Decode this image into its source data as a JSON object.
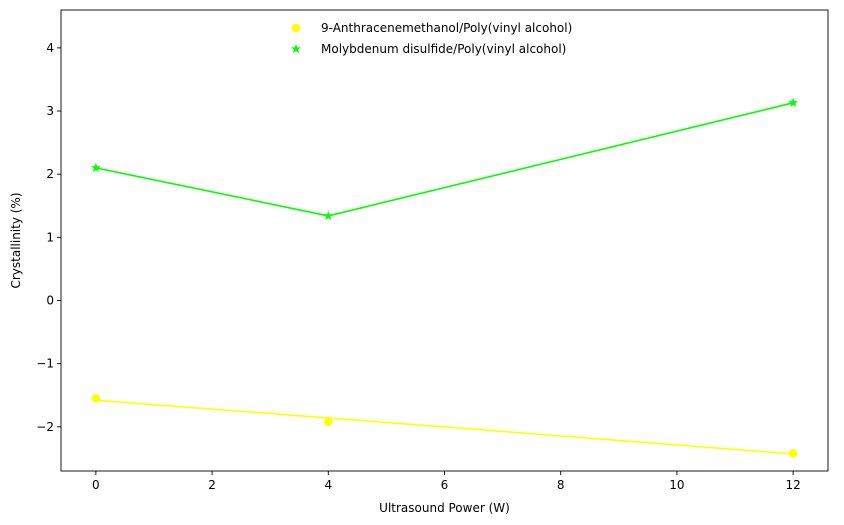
{
  "chart_data": {
    "type": "scatter",
    "xlabel": "Ultrasound Power (W)",
    "ylabel": "Crystallinity (%)",
    "xlim": [
      -0.6,
      12.6
    ],
    "ylim": [
      -2.7,
      4.6
    ],
    "xticks": [
      0,
      2,
      4,
      6,
      8,
      10,
      12
    ],
    "yticks": [
      -2,
      -1,
      0,
      1,
      2,
      3,
      4
    ],
    "grid": false,
    "legend": "upper-center",
    "series": [
      {
        "name": "9-Anthracenemethanol/Poly(vinyl alcohol)",
        "marker": "circle",
        "color": "#ffff00",
        "x": [
          0,
          4,
          12
        ],
        "y": [
          -1.55,
          -1.92,
          -2.42
        ],
        "fit": {
          "x": [
            0,
            4,
            12
          ],
          "y": [
            -1.58,
            -1.86,
            -2.43
          ]
        }
      },
      {
        "name": "Molybdenum disulfide/Poly(vinyl alcohol)",
        "marker": "star",
        "color": "#00ff00",
        "x": [
          0,
          4,
          12
        ],
        "y": [
          2.1,
          1.34,
          3.13
        ],
        "fit": {
          "x": [
            0,
            4,
            12
          ],
          "y": [
            2.1,
            1.34,
            3.13
          ]
        }
      }
    ]
  }
}
